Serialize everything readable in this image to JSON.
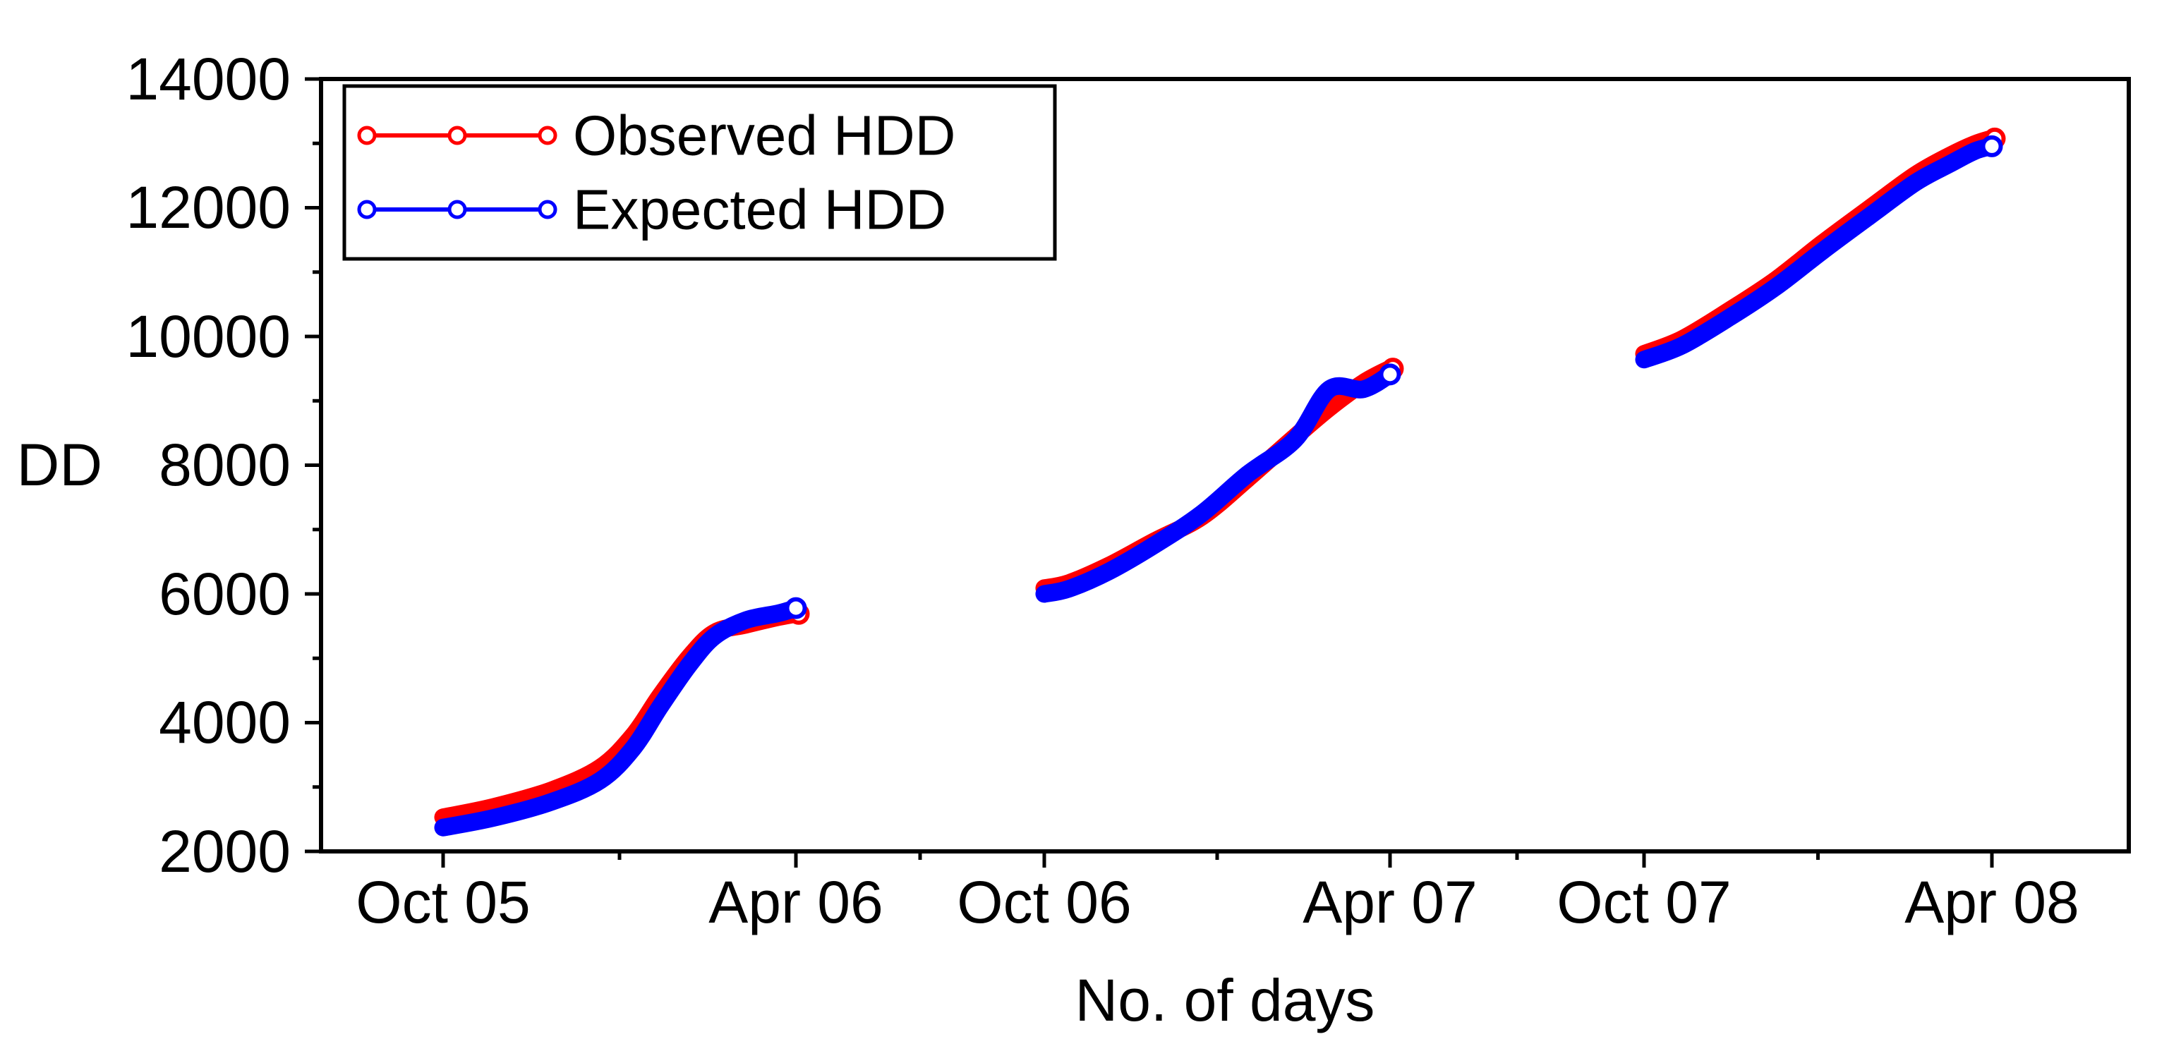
{
  "figure": {
    "background": "#ffffff",
    "frame_color": "#000000"
  },
  "chart_data": {
    "type": "line",
    "title": "",
    "xlabel": "No. of days",
    "ylabel": "DD",
    "ylim": [
      2000,
      14000
    ],
    "y_tick_step": 2000,
    "y_tick_labels": [
      "14000",
      "12000",
      "10000",
      "8000",
      "6000",
      "4000",
      "2000"
    ],
    "x_tick_labels": [
      "Oct 05",
      "Apr 06",
      "Oct 06",
      "Apr 07",
      "Oct 07",
      "Apr 08"
    ],
    "grid": false,
    "legend_position": "top-left",
    "marker": "open-circle",
    "days_per_season": 182,
    "series": [
      {
        "name": "Observed HDD",
        "color": "#ff0000",
        "segments": [
          {
            "season": "Oct 05 - Apr 06",
            "points": [
              [
                0,
                2530
              ],
              [
                26,
                2690
              ],
              [
                56,
                2950
              ],
              [
                81,
                3300
              ],
              [
                98,
                3800
              ],
              [
                112,
                4420
              ],
              [
                127,
                5020
              ],
              [
                140,
                5400
              ],
              [
                156,
                5520
              ],
              [
                173,
                5640
              ],
              [
                182,
                5690
              ]
            ]
          },
          {
            "season": "Oct 06 - Apr 07",
            "points": [
              [
                0,
                6090
              ],
              [
                13,
                6170
              ],
              [
                34,
                6440
              ],
              [
                58,
                6820
              ],
              [
                83,
                7200
              ],
              [
                107,
                7790
              ],
              [
                132,
                8440
              ],
              [
                150,
                8890
              ],
              [
                168,
                9280
              ],
              [
                182,
                9500
              ]
            ]
          },
          {
            "season": "Oct 07 - Apr 08",
            "points": [
              [
                0,
                9730
              ],
              [
                20,
                9960
              ],
              [
                45,
                10410
              ],
              [
                69,
                10880
              ],
              [
                93,
                11440
              ],
              [
                118,
                11990
              ],
              [
                142,
                12510
              ],
              [
                160,
                12810
              ],
              [
                173,
                12990
              ],
              [
                182,
                13075
              ]
            ]
          }
        ]
      },
      {
        "name": "Expected HDD",
        "color": "#0000ff",
        "segments": [
          {
            "season": "Oct 05 - Apr 06",
            "points": [
              [
                0,
                2370
              ],
              [
                26,
                2520
              ],
              [
                56,
                2770
              ],
              [
                81,
                3100
              ],
              [
                98,
                3600
              ],
              [
                112,
                4250
              ],
              [
                127,
                4900
              ],
              [
                140,
                5340
              ],
              [
                156,
                5590
              ],
              [
                173,
                5700
              ],
              [
                182,
                5780
              ]
            ]
          },
          {
            "season": "Oct 06 - Apr 07",
            "points": [
              [
                0,
                6000
              ],
              [
                13,
                6080
              ],
              [
                34,
                6350
              ],
              [
                58,
                6760
              ],
              [
                83,
                7250
              ],
              [
                107,
                7860
              ],
              [
                132,
                8400
              ],
              [
                150,
                9180
              ],
              [
                168,
                9180
              ],
              [
                182,
                9410
              ]
            ]
          },
          {
            "season": "Oct 07 - Apr 08",
            "points": [
              [
                0,
                9640
              ],
              [
                20,
                9860
              ],
              [
                45,
                10300
              ],
              [
                69,
                10770
              ],
              [
                93,
                11320
              ],
              [
                118,
                11870
              ],
              [
                142,
                12390
              ],
              [
                160,
                12680
              ],
              [
                173,
                12880
              ],
              [
                182,
                12955
              ]
            ]
          }
        ]
      }
    ]
  }
}
